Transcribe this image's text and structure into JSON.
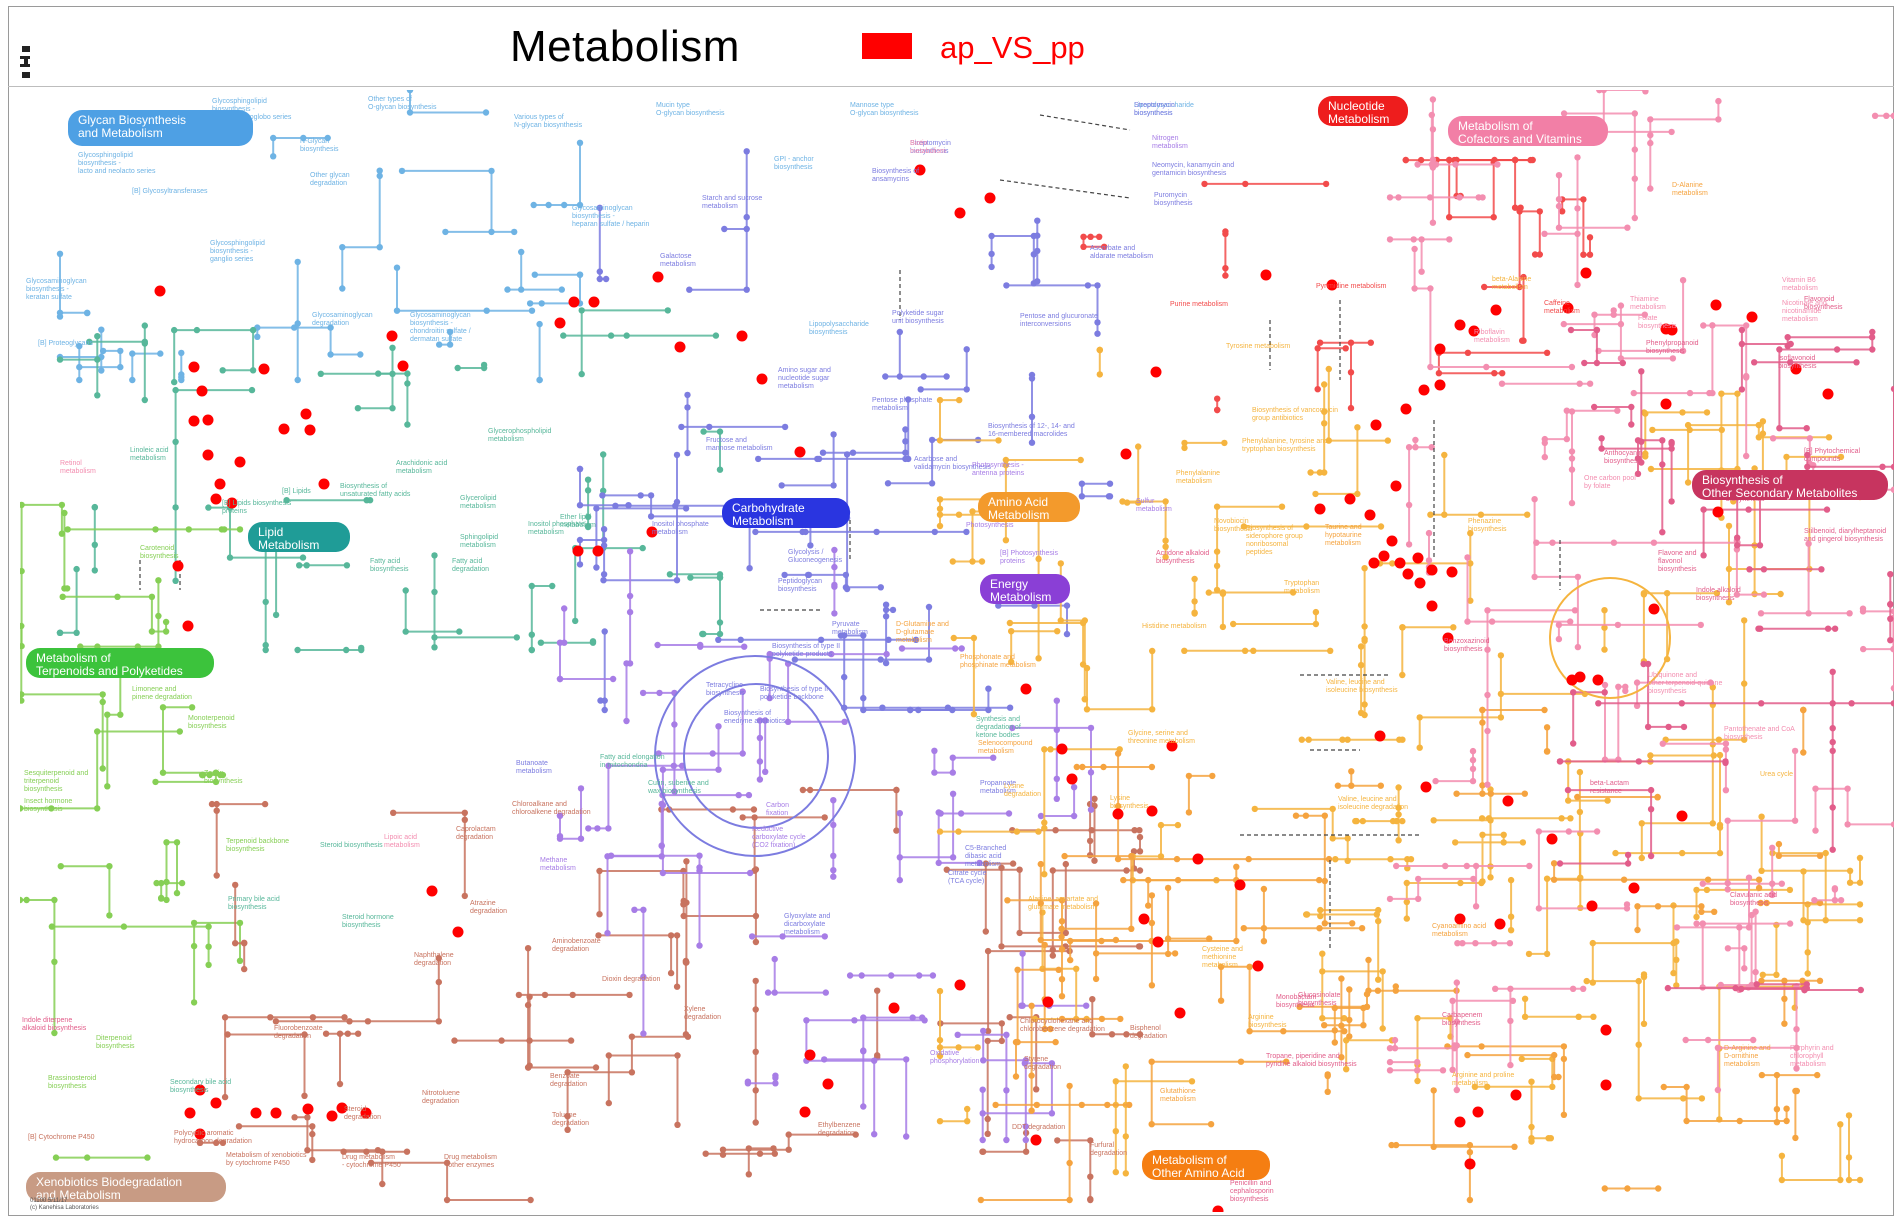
{
  "title": "Metabolism",
  "legend": {
    "label": "ap_VS_pp",
    "color": "#ff0000"
  },
  "colors": {
    "glycan": "#6eb3e4",
    "lipid": "#57b79a",
    "carbohydrate": "#7c7ce0",
    "terpenoid": "#86cf55",
    "xenobiotics": "#c8735f",
    "amino_acid": "#f5b43f",
    "energy": "#a77de6",
    "nucleotide": "#f24b4b",
    "cofactor": "#f38eb0",
    "secondary": "#e25d8a",
    "other_amino": "#f5a33f",
    "highlight": "#ff0000"
  },
  "categories": [
    {
      "id": "glycan",
      "text": "Glycan Biosynthesis\nand Metabolism",
      "bg": "#4ea0e4"
    },
    {
      "id": "lipid",
      "text": "Lipid\nMetabolism",
      "bg": "#1f9c97"
    },
    {
      "id": "terpenoid",
      "text": "Metabolism of\nTerpenoids and Polyketides",
      "bg": "#3cc33c"
    },
    {
      "id": "xenobiotics",
      "text": "Xenobiotics Biodegradation\nand Metabolism",
      "bg": "#c89b84"
    },
    {
      "id": "carbohydrate",
      "text": "Carbohydrate\nMetabolism",
      "bg": "#2a35e0"
    },
    {
      "id": "amino_acid",
      "text": "Amino Acid\nMetabolism",
      "bg": "#f39a2c"
    },
    {
      "id": "energy",
      "text": "Energy\nMetabolism",
      "bg": "#8a3fd6"
    },
    {
      "id": "nucleotide",
      "text": "Nucleotide\nMetabolism",
      "bg": "#ee1d1d"
    },
    {
      "id": "cofactor",
      "text": "Metabolism of\nCofactors and Vitamins",
      "bg": "#f27fa6"
    },
    {
      "id": "secondary",
      "text": "Biosynthesis of\nOther Secondary Metabolites",
      "bg": "#c7345f"
    },
    {
      "id": "other_amino",
      "text": "Metabolism of\nOther Amino Acid",
      "bg": "#f57e12"
    }
  ],
  "pathway_labels": [
    {
      "text": "Glycosphingolipid\nbiosynthesis -\nglobo and isoglobo series",
      "c": "glycan"
    },
    {
      "text": "Other types of\nO-glycan biosynthesis",
      "c": "glycan"
    },
    {
      "text": "N-Glycan\nbiosynthesis",
      "c": "glycan"
    },
    {
      "text": "Various types of\nN-glycan biosynthesis",
      "c": "glycan"
    },
    {
      "text": "Mucin type\nO-glycan biosynthesis",
      "c": "glycan"
    },
    {
      "text": "Mannose type\nO-glycan biosynthesis",
      "c": "glycan"
    },
    {
      "text": "Lipopolysaccharide\nbiosynthesis",
      "c": "glycan"
    },
    {
      "text": "Glycosphingolipid\nbiosynthesis -\nlacto and neolacto series",
      "c": "glycan"
    },
    {
      "text": "[B] Glycosyltransferases",
      "c": "glycan"
    },
    {
      "text": "Other glycan\ndegradation",
      "c": "glycan"
    },
    {
      "text": "GPI - anchor\nbiosynthesis",
      "c": "glycan"
    },
    {
      "text": "Glycosaminoglycan\nbiosynthesis -\nheparan sulfate / heparin",
      "c": "glycan"
    },
    {
      "text": "Glycosphingolipid\nbiosynthesis -\nganglio series",
      "c": "glycan"
    },
    {
      "text": "Glycosaminoglycan\nbiosynthesis -\nkeratan sulfate",
      "c": "glycan"
    },
    {
      "text": "[B] Proteoglycans",
      "c": "glycan"
    },
    {
      "text": "Glycosaminoglycan\ndegradation",
      "c": "glycan"
    },
    {
      "text": "Glycosaminoglycan\nbiosynthesis -\nchondroitin sulfate /\ndermatan sulfate",
      "c": "glycan"
    },
    {
      "text": "Streptomycin\nbiosynthesis",
      "c": "carbohydrate"
    },
    {
      "text": "Biosynthesis of\nansamycins",
      "c": "carbohydrate"
    },
    {
      "text": "Starch and sucrose\nmetabolism",
      "c": "carbohydrate"
    },
    {
      "text": "Galactose\nmetabolism",
      "c": "carbohydrate"
    },
    {
      "text": "Ascorbate and\naldarate metabolism",
      "c": "carbohydrate"
    },
    {
      "text": "Polyketide sugar\nunit biosynthesis",
      "c": "carbohydrate"
    },
    {
      "text": "Pentose and glucuronate\ninterconversions",
      "c": "carbohydrate"
    },
    {
      "text": "Amino sugar and\nnucleotide sugar\nmetabolism",
      "c": "carbohydrate"
    },
    {
      "text": "Pentose phosphate\nmetabolism",
      "c": "carbohydrate"
    },
    {
      "text": "Fructose and\nmannose metabolism",
      "c": "carbohydrate"
    },
    {
      "text": "Biosynthesis of 12-, 14- and\n16-membered macrolides",
      "c": "carbohydrate"
    },
    {
      "text": "Acarbose and\nvalidamycin biosynthesis",
      "c": "carbohydrate"
    },
    {
      "text": "Inositol phosphate\nmetabolism",
      "c": "carbohydrate"
    },
    {
      "text": "Glycolysis /\nGluconeogenesis",
      "c": "carbohydrate"
    },
    {
      "text": "Peptidoglycan\nbiosynthesis",
      "c": "carbohydrate"
    },
    {
      "text": "Pyruvate\nmetabolism",
      "c": "carbohydrate"
    },
    {
      "text": "Biosynthesis of type II\npolyketide products",
      "c": "carbohydrate"
    },
    {
      "text": "Tetracycline\nbiosynthesis",
      "c": "carbohydrate"
    },
    {
      "text": "Biosynthesis of type II\npolyketide backbone",
      "c": "carbohydrate"
    },
    {
      "text": "Biosynthesis of\nenediyne antibiotics",
      "c": "carbohydrate"
    },
    {
      "text": "Butanoate\nmetabolism",
      "c": "carbohydrate"
    },
    {
      "text": "Propanoate\nmetabolism",
      "c": "carbohydrate"
    },
    {
      "text": "C5-Branched\ndibasic acid\nmetabolism",
      "c": "carbohydrate"
    },
    {
      "text": "Citrate cycle\n(TCA cycle)",
      "c": "carbohydrate"
    },
    {
      "text": "Glyoxylate and\ndicarboxylate\nmetabolism",
      "c": "carbohydrate"
    },
    {
      "text": "Inositol phosphate\nmetabolism",
      "c": "lipid"
    },
    {
      "text": "Linoleic acid\nmetabolism",
      "c": "lipid"
    },
    {
      "text": "Arachidonic acid\nmetabolism",
      "c": "lipid"
    },
    {
      "text": "Biosynthesis of\nunsaturated fatty acids",
      "c": "lipid"
    },
    {
      "text": "Glycerophospholipid\nmetabolism",
      "c": "lipid"
    },
    {
      "text": "Glycerolipid\nmetabolism",
      "c": "lipid"
    },
    {
      "text": "Ether lipid\nmetabolism",
      "c": "lipid"
    },
    {
      "text": "Sphingolipid\nmetabolism",
      "c": "lipid"
    },
    {
      "text": "Fatty acid\nbiosynthesis",
      "c": "lipid"
    },
    {
      "text": "Fatty acid\ndegradation",
      "c": "lipid"
    },
    {
      "text": "Fatty acid elongation\nin mitochondria",
      "c": "lipid"
    },
    {
      "text": "[B] Lipids",
      "c": "lipid"
    },
    {
      "text": "[B] Lipids biosynthesis\nproteins",
      "c": "lipid"
    },
    {
      "text": "Cutin, suberine and\nwax biosynthesis",
      "c": "lipid"
    },
    {
      "text": "Primary bile acid\nbiosynthesis",
      "c": "lipid"
    },
    {
      "text": "Steroid biosynthesis",
      "c": "lipid"
    },
    {
      "text": "Steroid hormone\nbiosynthesis",
      "c": "lipid"
    },
    {
      "text": "Secondary bile acid\nbiosynthesis",
      "c": "lipid"
    },
    {
      "text": "Retinol\nmetabolism",
      "c": "cofactor"
    },
    {
      "text": "Carotenoid\nbiosynthesis",
      "c": "terpenoid"
    },
    {
      "text": "Limonene and\npinene degradation",
      "c": "terpenoid"
    },
    {
      "text": "Monoterpenoid\nbiosynthesis",
      "c": "terpenoid"
    },
    {
      "text": "Sesquiterpenoid and\ntriterpenoid\nbiosynthesis",
      "c": "terpenoid"
    },
    {
      "text": "Zeatin\nbiosynthesis",
      "c": "terpenoid"
    },
    {
      "text": "Insect hormone\nbiosynthesis",
      "c": "terpenoid"
    },
    {
      "text": "Terpenoid backbone\nbiosynthesis",
      "c": "terpenoid"
    },
    {
      "text": "Indole diterpene\nalkaloid biosynthesis",
      "c": "secondary"
    },
    {
      "text": "Diterpenoid\nbiosynthesis",
      "c": "terpenoid"
    },
    {
      "text": "Brassinosteroid\nbiosynthesis",
      "c": "terpenoid"
    },
    {
      "text": "[B] Cytochrome P450",
      "c": "xenobiotics"
    },
    {
      "text": "Polycyclic aromatic\nhydrocarbon degradation",
      "c": "xenobiotics"
    },
    {
      "text": "Chloroalkane and\nchloroalkene degradation",
      "c": "xenobiotics"
    },
    {
      "text": "Caprolactam\ndegradation",
      "c": "xenobiotics"
    },
    {
      "text": "Atrazine\ndegradation",
      "c": "xenobiotics"
    },
    {
      "text": "Aminobenzoate\ndegradation",
      "c": "xenobiotics"
    },
    {
      "text": "Naphthalene\ndegradation",
      "c": "xenobiotics"
    },
    {
      "text": "Dioxin degradation",
      "c": "xenobiotics"
    },
    {
      "text": "Xylene\ndegradation",
      "c": "xenobiotics"
    },
    {
      "text": "Fluorobenzoate\ndegradation",
      "c": "xenobiotics"
    },
    {
      "text": "Benzoate\ndegradation",
      "c": "xenobiotics"
    },
    {
      "text": "Nitrotoluene\ndegradation",
      "c": "xenobiotics"
    },
    {
      "text": "Toluene\ndegradation",
      "c": "xenobiotics"
    },
    {
      "text": "Steroid\ndegradation",
      "c": "xenobiotics"
    },
    {
      "text": "Ethylbenzene\ndegradation",
      "c": "xenobiotics"
    },
    {
      "text": "Metabolism of xenobiotics\nby cytochrome P450",
      "c": "xenobiotics"
    },
    {
      "text": "Drug metabolism\n- cytochrome P450",
      "c": "xenobiotics"
    },
    {
      "text": "Drug metabolism\n- other enzymes",
      "c": "xenobiotics"
    },
    {
      "text": "DDT degradation",
      "c": "xenobiotics"
    },
    {
      "text": "Styrene\ndegradation",
      "c": "xenobiotics"
    },
    {
      "text": "Chlorocyclohexane and\nchlorobenzene degradation",
      "c": "xenobiotics"
    },
    {
      "text": "Furfural\ndegradation",
      "c": "xenobiotics"
    },
    {
      "text": "Bisphenol\ndegradation",
      "c": "xenobiotics"
    },
    {
      "text": "Lipoic acid\nmetabolism",
      "c": "cofactor"
    },
    {
      "text": "Methane\nmetabolism",
      "c": "energy"
    },
    {
      "text": "Carbon\nfixation",
      "c": "energy"
    },
    {
      "text": "Reductive\ncarboxylate cycle\n(CO2 fixation)",
      "c": "energy"
    },
    {
      "text": "Oxidative\nphosphorylation",
      "c": "energy"
    },
    {
      "text": "Photosynthesis -\nantenna proteins",
      "c": "energy"
    },
    {
      "text": "Photosynthesis",
      "c": "energy"
    },
    {
      "text": "[B] Photosynthesis\nproteins",
      "c": "energy"
    },
    {
      "text": "Sulfur\nmetabolism",
      "c": "energy"
    },
    {
      "text": "Nitrogen\nmetabolism",
      "c": "energy"
    },
    {
      "text": "Neomycin, kanamycin and\ngentamicin biosynthesis",
      "c": "carbohydrate"
    },
    {
      "text": "Puromycin\nbiosynthesis",
      "c": "carbohydrate"
    },
    {
      "text": "Purine metabolism",
      "c": "nucleotide"
    },
    {
      "text": "Pyrimidine metabolism",
      "c": "nucleotide"
    },
    {
      "text": "beta-Alanine\nmetabolism",
      "c": "amino_acid"
    },
    {
      "text": "Caffeine\nmetabolism",
      "c": "nucleotide"
    },
    {
      "text": "Riboflavin\nmetabolism",
      "c": "cofactor"
    },
    {
      "text": "Tyrosine metabolism",
      "c": "amino_acid"
    },
    {
      "text": "Biosynthesis of vancomycin\ngroup antibiotics",
      "c": "amino_acid"
    },
    {
      "text": "Phenylalanine, tyrosine and\ntryptophan biosynthesis",
      "c": "amino_acid"
    },
    {
      "text": "Phenylalanine\nmetabolism",
      "c": "amino_acid"
    },
    {
      "text": "Novobiocin\nbiosynthesis",
      "c": "amino_acid"
    },
    {
      "text": "Acridone alkaloid\nbiosynthesis",
      "c": "secondary"
    },
    {
      "text": "Phenazine\nbiosynthesis",
      "c": "amino_acid"
    },
    {
      "text": "Biosynthesis of\nsiderophore group\nnonribosomal\npeptides",
      "c": "amino_acid"
    },
    {
      "text": "Taurine and\nhypotaurine\nmetabolism",
      "c": "other_amino"
    },
    {
      "text": "Tryptophan\nmetabolism",
      "c": "amino_acid"
    },
    {
      "text": "Histidine metabolism",
      "c": "amino_acid"
    },
    {
      "text": "Benzoxazinoid\nbiosynthesis",
      "c": "secondary"
    },
    {
      "text": "Valine, leucine and\nisoleucine biosynthesis",
      "c": "amino_acid"
    },
    {
      "text": "Synthesis and\ndegradation of\nketone bodies",
      "c": "lipid"
    },
    {
      "text": "Selenocompound\nmetabolism",
      "c": "other_amino"
    },
    {
      "text": "Glycine, serine and\nthreonine metabolism",
      "c": "amino_acid"
    },
    {
      "text": "Lysine\ndegradation",
      "c": "amino_acid"
    },
    {
      "text": "Lysine\nbiosynthesis",
      "c": "amino_acid"
    },
    {
      "text": "Valine, leucine and\nisoleucine degradation",
      "c": "amino_acid"
    },
    {
      "text": "Alanine, aspartate and\nglutamate metabolism",
      "c": "amino_acid"
    },
    {
      "text": "Cysteine and\nmethionine\nmetabolism",
      "c": "amino_acid"
    },
    {
      "text": "Monobactam\nbiosynthesis",
      "c": "secondary"
    },
    {
      "text": "Cyanoamino acid\nmetabolism",
      "c": "other_amino"
    },
    {
      "text": "Glucosinolate\nbiosynthesis",
      "c": "secondary"
    },
    {
      "text": "Arginine\nbiosynthesis",
      "c": "amino_acid"
    },
    {
      "text": "Carbapenem\nbiosynthesis",
      "c": "secondary"
    },
    {
      "text": "Arginine and proline\nmetabolism",
      "c": "amino_acid"
    },
    {
      "text": "Tropane, piperidine and\npyridine alkaloid biosynthesis",
      "c": "secondary"
    },
    {
      "text": "Glutathione\nmetabolism",
      "c": "other_amino"
    },
    {
      "text": "Penicillin and\ncephalosporin\nbiosynthesis",
      "c": "secondary"
    },
    {
      "text": "beta-Lactam\nresistance",
      "c": "secondary"
    },
    {
      "text": "Urea cycle",
      "c": "amino_acid"
    },
    {
      "text": "Clavulanic acid\nbiosynthesis",
      "c": "secondary"
    },
    {
      "text": "D-Arginine and\nD-ornithine\nmetabolism",
      "c": "other_amino"
    },
    {
      "text": "D-Glutamine and\nD-glutamate\nmetabolism",
      "c": "other_amino"
    },
    {
      "text": "Phosphonate and\nphosphinate metabolism",
      "c": "other_amino"
    },
    {
      "text": "D-Alanine\nmetabolism",
      "c": "other_amino"
    },
    {
      "text": "Thiamine\nmetabolism",
      "c": "cofactor"
    },
    {
      "text": "Folate\nbiosynthesis",
      "c": "cofactor"
    },
    {
      "text": "Vitamin B6\nmetabolism",
      "c": "cofactor"
    },
    {
      "text": "Flavonoid\nbiosynthesis",
      "c": "secondary"
    },
    {
      "text": "Phenylpropanoid\nbiosynthesis",
      "c": "secondary"
    },
    {
      "text": "Isoflavonoid\nbiosynthesis",
      "c": "secondary"
    },
    {
      "text": "[B] Phytochemical\ncompounds",
      "c": "secondary"
    },
    {
      "text": "Anthocyanin\nbiosynthesis",
      "c": "secondary"
    },
    {
      "text": "One carbon pool\nby folate",
      "c": "cofactor"
    },
    {
      "text": "Isoquinoline alkaloid\nbiosynthesis",
      "c": "secondary"
    },
    {
      "text": "Stilbenoid, diarylheptanoid\nand gingerol biosynthesis",
      "c": "secondary"
    },
    {
      "text": "Flavone and\nflavonol\nbiosynthesis",
      "c": "secondary"
    },
    {
      "text": "Indole alkaloid\nbiosynthesis",
      "c": "secondary"
    },
    {
      "text": "Ubiquinone and\nother terpenoid-quinone\nbiosynthesis",
      "c": "cofactor"
    },
    {
      "text": "Pantothenate and CoA\nbiosynthesis",
      "c": "cofactor"
    },
    {
      "text": "Porphyrin and\nchlorophyll\nmetabolism",
      "c": "cofactor"
    },
    {
      "text": "Nicotinate and\nnicotinamide\nmetabolism",
      "c": "cofactor"
    },
    {
      "text": "Biotin\nmetabolism",
      "c": "cofactor"
    },
    {
      "text": "Streptomycin\nbiosynthesis",
      "c": "carbohydrate"
    },
    {
      "text": "Lipopolysaccharide\nbiosynthesis",
      "c": "glycan"
    }
  ],
  "copyright": "01100 5/11/17\n(c) Kanehisa Laboratories"
}
